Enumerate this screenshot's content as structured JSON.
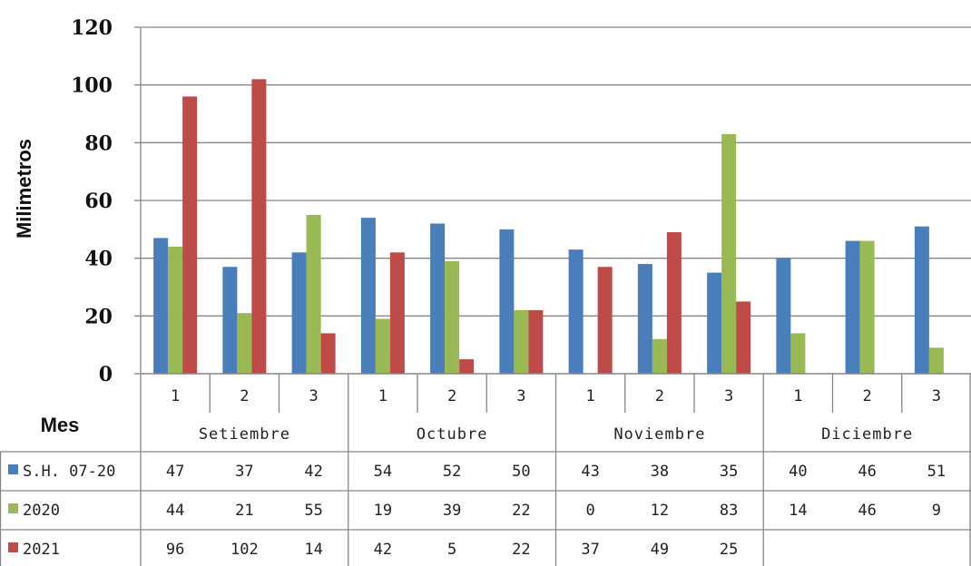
{
  "chart_data": {
    "type": "bar",
    "title": "",
    "ylabel": "Milimetros",
    "xlabel": "Mes",
    "ylim": [
      0,
      120
    ],
    "yticks": [
      "0",
      "20",
      "40",
      "60",
      "80",
      "100",
      "120"
    ],
    "grid": true,
    "months": [
      "Setiembre",
      "Octubre",
      "Noviembre",
      "Diciembre"
    ],
    "categories": [
      "1",
      "2",
      "3",
      "1",
      "2",
      "3",
      "1",
      "2",
      "3",
      "1",
      "2",
      "3"
    ],
    "series": [
      {
        "name": "S.H. 07-20",
        "color": "#4a7ebb",
        "values": [
          47,
          37,
          42,
          54,
          52,
          50,
          43,
          38,
          35,
          40,
          46,
          51
        ],
        "labels": [
          "47",
          "37",
          "42",
          "54",
          "52",
          "50",
          "43",
          "38",
          "35",
          "40",
          "46",
          "51"
        ]
      },
      {
        "name": "2020",
        "color": "#98b954",
        "values": [
          44,
          21,
          55,
          19,
          39,
          22,
          0,
          12,
          83,
          14,
          46,
          9
        ],
        "labels": [
          "44",
          "21",
          "55",
          "19",
          "39",
          "22",
          "0",
          "12",
          "83",
          "14",
          "46",
          "9"
        ]
      },
      {
        "name": "2021",
        "color": "#be4b48",
        "values": [
          96,
          102,
          14,
          42,
          5,
          22,
          37,
          49,
          25,
          null,
          null,
          null
        ],
        "labels": [
          "96",
          "102",
          "14",
          "42",
          "5",
          "22",
          "37",
          "49",
          "25",
          "",
          "",
          ""
        ]
      }
    ],
    "legend": "data-table"
  }
}
